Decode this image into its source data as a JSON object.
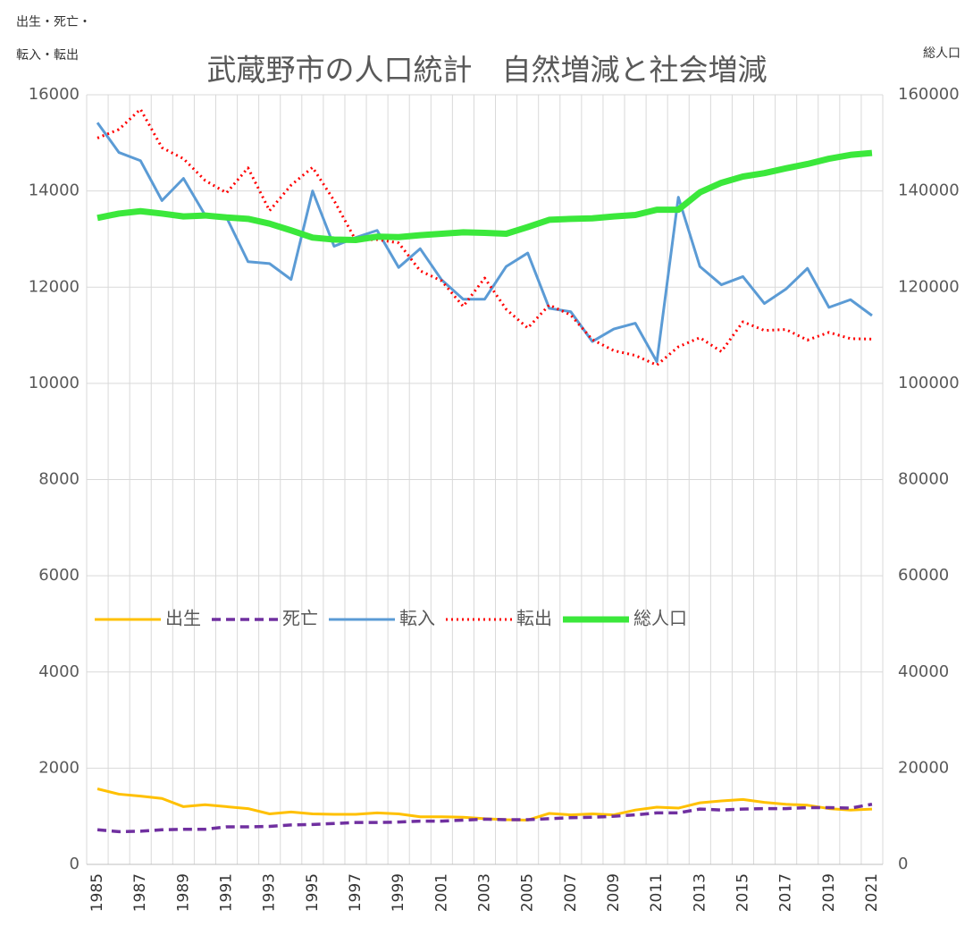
{
  "chart_data": {
    "type": "line",
    "title": "武蔵野市の人口統計　自然増減と社会増減",
    "ylabel": [
      "出生・死亡・",
      "転入・転出"
    ],
    "y2label": "総人口",
    "categories": [
      "1985",
      null,
      "1987",
      null,
      "1989",
      null,
      "1991",
      null,
      "1993",
      null,
      "1995",
      null,
      "1997",
      null,
      "1999",
      null,
      "2001",
      null,
      "2003",
      null,
      "2005",
      null,
      "2007",
      null,
      "2009",
      null,
      "2011",
      null,
      "2013",
      null,
      "2015",
      null,
      "2017",
      null,
      "2019",
      null,
      "2021"
    ],
    "ylim": [
      0,
      16000
    ],
    "yticks": [
      0,
      2000,
      4000,
      6000,
      8000,
      10000,
      12000,
      14000,
      16000
    ],
    "y2lim": [
      0,
      160000
    ],
    "y2ticks": [
      0,
      20000,
      40000,
      60000,
      80000,
      100000,
      120000,
      140000,
      160000
    ],
    "grid": true,
    "legend": "center-left",
    "series": [
      {
        "name": "出生",
        "color": "#ffc000",
        "style": "solid",
        "values": [
          1570,
          1460,
          1420,
          1370,
          1200,
          1240,
          1200,
          1160,
          1050,
          1090,
          1050,
          1040,
          1040,
          1070,
          1050,
          990,
          990,
          980,
          950,
          930,
          920,
          1060,
          1030,
          1050,
          1030,
          1130,
          1190,
          1170,
          1280,
          1320,
          1350,
          1290,
          1250,
          1230,
          1160,
          1130,
          1150
        ]
      },
      {
        "name": "死亡",
        "color": "#7030a0",
        "style": "dashed",
        "values": [
          720,
          680,
          690,
          720,
          730,
          730,
          780,
          780,
          790,
          820,
          830,
          850,
          870,
          870,
          880,
          900,
          900,
          920,
          940,
          930,
          930,
          950,
          970,
          980,
          1000,
          1030,
          1070,
          1070,
          1150,
          1130,
          1150,
          1160,
          1160,
          1180,
          1180,
          1170,
          1250
        ]
      },
      {
        "name": "転入",
        "color": "#5b9bd5",
        "style": "solid",
        "values": [
          15420,
          14800,
          14630,
          13800,
          14260,
          13500,
          13450,
          12530,
          12490,
          12160,
          14000,
          12850,
          13030,
          13180,
          12410,
          12800,
          12150,
          11750,
          11750,
          12430,
          12710,
          11560,
          11490,
          10870,
          11130,
          11250,
          10450,
          13870,
          12430,
          12050,
          12220,
          11660,
          11960,
          12390,
          11580,
          11740,
          11410
        ]
      },
      {
        "name": "転出",
        "color": "#ff0000",
        "style": "dotted",
        "values": [
          15100,
          15280,
          15700,
          14900,
          14670,
          14220,
          13960,
          14480,
          13590,
          14120,
          14490,
          13800,
          12980,
          12990,
          12920,
          12340,
          12130,
          11600,
          12190,
          11540,
          11150,
          11630,
          11420,
          10910,
          10680,
          10580,
          10380,
          10760,
          10950,
          10660,
          11280,
          11100,
          11120,
          10900,
          11060,
          10930,
          10920
        ]
      },
      {
        "name": "総人口",
        "color": "#3be83b",
        "style": "thick",
        "axis": "y2",
        "values": [
          134400,
          135300,
          135800,
          135300,
          134700,
          134900,
          134500,
          134200,
          133200,
          131800,
          130300,
          129900,
          129800,
          130500,
          130400,
          130800,
          131100,
          131400,
          131300,
          131100,
          132500,
          134000,
          134200,
          134300,
          134700,
          135000,
          136100,
          136100,
          139700,
          141700,
          143000,
          143700,
          144700,
          145600,
          146700,
          147500,
          147900
        ]
      }
    ]
  }
}
